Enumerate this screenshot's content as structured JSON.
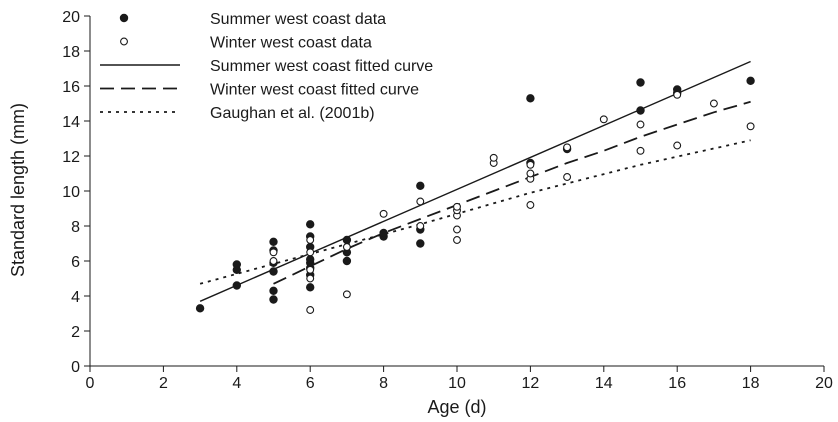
{
  "chart_data": {
    "type": "scatter",
    "title": "",
    "xlabel": "Age (d)",
    "ylabel": "Standard length (mm)",
    "xlim": [
      0,
      20
    ],
    "ylim": [
      0,
      20
    ],
    "x_ticks": [
      0,
      2,
      4,
      6,
      8,
      10,
      12,
      14,
      16,
      18,
      20
    ],
    "y_ticks": [
      0,
      2,
      4,
      6,
      8,
      10,
      12,
      14,
      16,
      18,
      20
    ],
    "grid": false,
    "legend_position": "top-left",
    "series": [
      {
        "name": "Summer west coast data",
        "kind": "points",
        "marker": "filled-circle",
        "color": "#1a1a1a",
        "points": [
          [
            3,
            3.3
          ],
          [
            4,
            4.6
          ],
          [
            4,
            5.5
          ],
          [
            4,
            5.8
          ],
          [
            5,
            3.8
          ],
          [
            5,
            4.3
          ],
          [
            5,
            5.4
          ],
          [
            5,
            5.9
          ],
          [
            5,
            6.6
          ],
          [
            5,
            7.1
          ],
          [
            6,
            4.5
          ],
          [
            6,
            5.2
          ],
          [
            6,
            5.6
          ],
          [
            6,
            5.9
          ],
          [
            6,
            6.1
          ],
          [
            6,
            6.8
          ],
          [
            6,
            7.4
          ],
          [
            6,
            8.1
          ],
          [
            7,
            6.0
          ],
          [
            7,
            6.5
          ],
          [
            7,
            7.2
          ],
          [
            8,
            7.4
          ],
          [
            8,
            7.6
          ],
          [
            9,
            7.0
          ],
          [
            9,
            7.8
          ],
          [
            9,
            10.3
          ],
          [
            12,
            11.6
          ],
          [
            12,
            15.3
          ],
          [
            13,
            12.4
          ],
          [
            15,
            14.6
          ],
          [
            15,
            16.2
          ],
          [
            16,
            15.6
          ],
          [
            16,
            15.8
          ],
          [
            18,
            16.3
          ]
        ]
      },
      {
        "name": "Winter west coast data",
        "kind": "points",
        "marker": "open-circle",
        "color": "#1a1a1a",
        "points": [
          [
            5,
            6.0
          ],
          [
            5,
            6.5
          ],
          [
            6,
            3.2
          ],
          [
            6,
            5.0
          ],
          [
            6,
            5.5
          ],
          [
            6,
            6.5
          ],
          [
            6,
            7.2
          ],
          [
            7,
            4.1
          ],
          [
            7,
            6.8
          ],
          [
            8,
            8.7
          ],
          [
            9,
            8.0
          ],
          [
            9,
            9.4
          ],
          [
            10,
            7.2
          ],
          [
            10,
            7.8
          ],
          [
            10,
            8.6
          ],
          [
            10,
            8.9
          ],
          [
            10,
            9.1
          ],
          [
            11,
            11.6
          ],
          [
            11,
            11.9
          ],
          [
            12,
            9.2
          ],
          [
            12,
            10.7
          ],
          [
            12,
            11.0
          ],
          [
            12,
            11.5
          ],
          [
            13,
            10.8
          ],
          [
            13,
            12.5
          ],
          [
            14,
            14.1
          ],
          [
            15,
            12.3
          ],
          [
            15,
            13.8
          ],
          [
            16,
            12.6
          ],
          [
            16,
            15.5
          ],
          [
            17,
            15.0
          ],
          [
            18,
            13.7
          ]
        ]
      },
      {
        "name": "Summer west coast fitted curve",
        "kind": "line",
        "style": "solid",
        "color": "#1a1a1a",
        "points": [
          [
            3,
            3.7
          ],
          [
            18,
            17.4
          ]
        ]
      },
      {
        "name": "Winter west coast fitted curve",
        "kind": "line",
        "style": "dashed",
        "color": "#1a1a1a",
        "points": [
          [
            5,
            4.7
          ],
          [
            6,
            5.7
          ],
          [
            7,
            6.7
          ],
          [
            8,
            7.6
          ],
          [
            9,
            8.4
          ],
          [
            10,
            9.2
          ],
          [
            11,
            10.0
          ],
          [
            12,
            10.8
          ],
          [
            13,
            11.6
          ],
          [
            14,
            12.3
          ],
          [
            15,
            13.1
          ],
          [
            16,
            13.8
          ],
          [
            17,
            14.5
          ],
          [
            18,
            15.1
          ]
        ]
      },
      {
        "name": "Gaughan et al. (2001b)",
        "kind": "line",
        "style": "dotted",
        "color": "#1a1a1a",
        "points": [
          [
            3,
            4.7
          ],
          [
            6,
            6.4
          ],
          [
            9,
            8.1
          ],
          [
            12,
            9.9
          ],
          [
            15,
            11.5
          ],
          [
            18,
            12.9
          ]
        ]
      }
    ]
  }
}
